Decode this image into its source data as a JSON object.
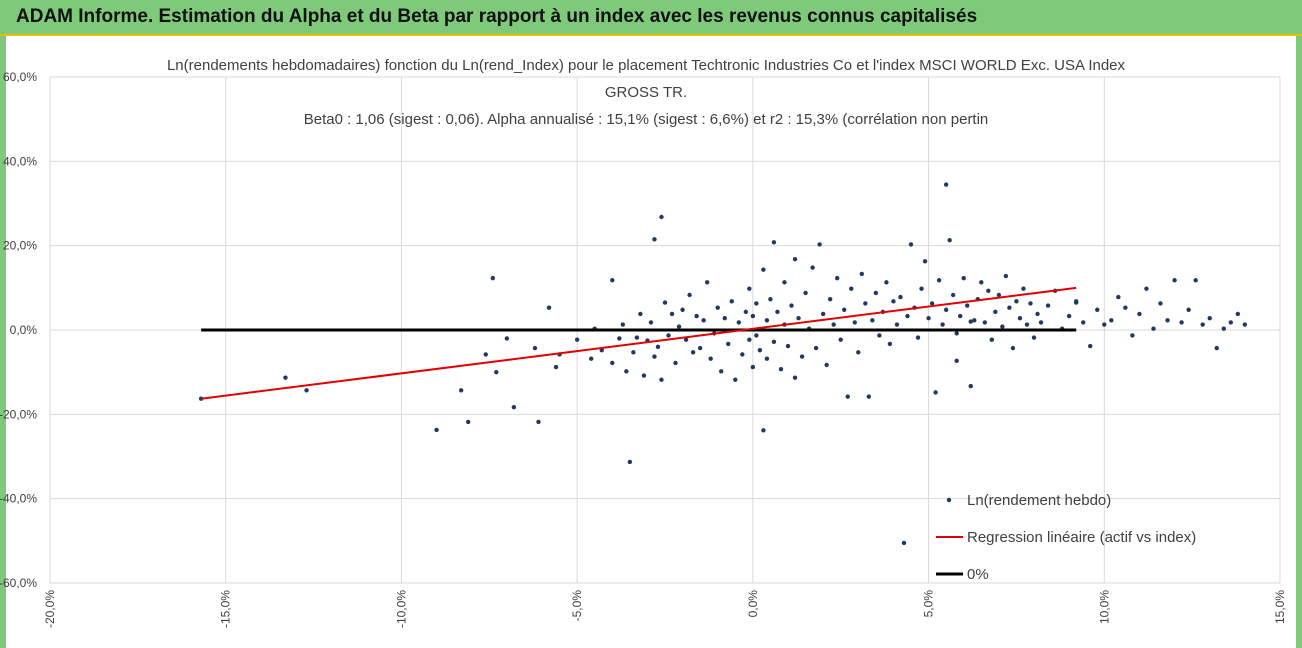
{
  "header": {
    "title": "ADAM Informe. Estimation du Alpha et du Beta par rapport à un index avec les revenus connus capitalisés"
  },
  "colors": {
    "banner": "#7ec97a",
    "banner_border": "#e8c000",
    "points": "#1f3864",
    "regression": "#e00000",
    "zero_line": "#000000",
    "grid": "#d9d9d9"
  },
  "chart_data": {
    "type": "scatter",
    "title_lines": [
      "Ln(rendements hebdomadaires) fonction du Ln(rend_Index) pour le placement Techtronic Industries Co  et l'index MSCI WORLD Exc. USA Index",
      "GROSS TR.",
      "Beta0 : 1,06 (sigest : 0,06). Alpha annualisé : 15,1% (sigest : 6,6%) et r2 : 15,3% (corrélation non pertin"
    ],
    "xlim": [
      -0.2,
      0.15
    ],
    "ylim": [
      -0.6,
      0.6
    ],
    "x_ticks": [
      -0.2,
      -0.15,
      -0.1,
      -0.05,
      0,
      0.05,
      0.1,
      0.15
    ],
    "x_tick_labels": [
      "-20,0%",
      "-15,0%",
      "-10,0%",
      "-5,0%",
      "0,0%",
      "5,0%",
      "10,0%",
      "15,0%"
    ],
    "y_ticks": [
      0.6,
      0.4,
      0.2,
      0,
      -0.2,
      -0.4,
      -0.6
    ],
    "y_tick_labels": [
      "60,0%",
      "40,0%",
      "20,0%",
      "0,0%",
      "-20,0%",
      "-40,0%",
      "-60,0%"
    ],
    "grid": true,
    "legend_position": "bottom-right",
    "series": [
      {
        "name": "Ln(rendement hebdo)",
        "kind": "points",
        "points": [
          [
            -0.157,
            -0.163
          ],
          [
            -0.133,
            -0.113
          ],
          [
            -0.127,
            -0.143
          ],
          [
            -0.09,
            -0.237
          ],
          [
            -0.083,
            -0.143
          ],
          [
            -0.081,
            -0.218
          ],
          [
            -0.076,
            -0.058
          ],
          [
            -0.074,
            0.123
          ],
          [
            -0.073,
            -0.1
          ],
          [
            -0.07,
            -0.02
          ],
          [
            -0.068,
            -0.183
          ],
          [
            -0.062,
            -0.043
          ],
          [
            -0.061,
            -0.218
          ],
          [
            -0.058,
            0.053
          ],
          [
            -0.056,
            -0.088
          ],
          [
            -0.055,
            -0.058
          ],
          [
            -0.05,
            -0.023
          ],
          [
            -0.046,
            -0.068
          ],
          [
            -0.045,
            0.003
          ],
          [
            -0.043,
            -0.048
          ],
          [
            -0.04,
            0.118
          ],
          [
            -0.04,
            -0.078
          ],
          [
            -0.038,
            -0.02
          ],
          [
            -0.037,
            0.013
          ],
          [
            -0.036,
            -0.098
          ],
          [
            -0.035,
            -0.313
          ],
          [
            -0.034,
            -0.053
          ],
          [
            -0.033,
            -0.018
          ],
          [
            -0.032,
            0.038
          ],
          [
            -0.031,
            -0.108
          ],
          [
            -0.03,
            -0.025
          ],
          [
            -0.029,
            0.018
          ],
          [
            -0.028,
            -0.063
          ],
          [
            -0.028,
            0.215
          ],
          [
            -0.027,
            -0.04
          ],
          [
            -0.026,
            0.268
          ],
          [
            -0.026,
            -0.118
          ],
          [
            -0.025,
            0.065
          ],
          [
            -0.024,
            -0.013
          ],
          [
            -0.023,
            0.038
          ],
          [
            -0.022,
            -0.078
          ],
          [
            -0.021,
            0.008
          ],
          [
            -0.02,
            0.048
          ],
          [
            -0.019,
            -0.023
          ],
          [
            -0.018,
            0.083
          ],
          [
            -0.017,
            -0.053
          ],
          [
            -0.016,
            0.033
          ],
          [
            -0.015,
            -0.043
          ],
          [
            -0.014,
            0.023
          ],
          [
            -0.013,
            0.113
          ],
          [
            -0.012,
            -0.068
          ],
          [
            -0.011,
            -0.008
          ],
          [
            -0.01,
            0.053
          ],
          [
            -0.009,
            -0.098
          ],
          [
            -0.008,
            0.028
          ],
          [
            -0.007,
            -0.033
          ],
          [
            -0.006,
            0.068
          ],
          [
            -0.005,
            -0.118
          ],
          [
            -0.004,
            0.018
          ],
          [
            -0.003,
            -0.058
          ],
          [
            -0.002,
            0.043
          ],
          [
            -0.001,
            -0.023
          ],
          [
            -0.001,
            0.098
          ],
          [
            0.0,
            -0.088
          ],
          [
            0.0,
            0.033
          ],
          [
            0.001,
            -0.013
          ],
          [
            0.001,
            0.063
          ],
          [
            0.002,
            -0.048
          ],
          [
            0.003,
            0.143
          ],
          [
            0.003,
            -0.238
          ],
          [
            0.004,
            0.023
          ],
          [
            0.004,
            -0.068
          ],
          [
            0.005,
            0.073
          ],
          [
            0.006,
            -0.028
          ],
          [
            0.006,
            0.208
          ],
          [
            0.007,
            0.043
          ],
          [
            0.008,
            -0.093
          ],
          [
            0.009,
            0.013
          ],
          [
            0.009,
            0.113
          ],
          [
            0.01,
            -0.038
          ],
          [
            0.011,
            0.058
          ],
          [
            0.012,
            -0.113
          ],
          [
            0.012,
            0.168
          ],
          [
            0.013,
            0.028
          ],
          [
            0.014,
            -0.063
          ],
          [
            0.015,
            0.088
          ],
          [
            0.016,
            0.003
          ],
          [
            0.017,
            0.148
          ],
          [
            0.018,
            -0.043
          ],
          [
            0.019,
            0.203
          ],
          [
            0.02,
            0.038
          ],
          [
            0.021,
            -0.083
          ],
          [
            0.022,
            0.073
          ],
          [
            0.023,
            0.013
          ],
          [
            0.024,
            0.123
          ],
          [
            0.025,
            -0.023
          ],
          [
            0.026,
            0.048
          ],
          [
            0.027,
            -0.158
          ],
          [
            0.028,
            0.098
          ],
          [
            0.029,
            0.018
          ],
          [
            0.03,
            -0.053
          ],
          [
            0.031,
            0.133
          ],
          [
            0.032,
            0.063
          ],
          [
            0.033,
            -0.158
          ],
          [
            0.034,
            0.023
          ],
          [
            0.035,
            0.088
          ],
          [
            0.036,
            -0.013
          ],
          [
            0.037,
            0.043
          ],
          [
            0.038,
            0.113
          ],
          [
            0.039,
            -0.033
          ],
          [
            0.04,
            0.068
          ],
          [
            0.041,
            0.013
          ],
          [
            0.042,
            0.078
          ],
          [
            0.043,
            -0.505
          ],
          [
            0.044,
            0.033
          ],
          [
            0.045,
            0.203
          ],
          [
            0.046,
            0.053
          ],
          [
            0.047,
            -0.018
          ],
          [
            0.048,
            0.098
          ],
          [
            0.049,
            0.163
          ],
          [
            0.05,
            0.028
          ],
          [
            0.051,
            0.063
          ],
          [
            0.052,
            -0.148
          ],
          [
            0.053,
            0.118
          ],
          [
            0.054,
            0.013
          ],
          [
            0.055,
            0.048
          ],
          [
            0.056,
            0.213
          ],
          [
            0.057,
            0.083
          ],
          [
            0.058,
            -0.008
          ],
          [
            0.059,
            0.033
          ],
          [
            0.06,
            0.123
          ],
          [
            0.061,
            0.058
          ],
          [
            0.062,
            -0.133
          ],
          [
            0.063,
            0.023
          ],
          [
            0.064,
            0.073
          ],
          [
            0.065,
            0.113
          ],
          [
            0.066,
            0.018
          ],
          [
            0.067,
            0.093
          ],
          [
            0.068,
            -0.023
          ],
          [
            0.069,
            0.043
          ],
          [
            0.07,
            0.083
          ],
          [
            0.071,
            0.008
          ],
          [
            0.072,
            0.128
          ],
          [
            0.073,
            0.053
          ],
          [
            0.074,
            -0.043
          ],
          [
            0.075,
            0.068
          ],
          [
            0.076,
            0.028
          ],
          [
            0.077,
            0.098
          ],
          [
            0.078,
            0.013
          ],
          [
            0.079,
            0.063
          ],
          [
            0.08,
            -0.018
          ],
          [
            0.081,
            0.038
          ],
          [
            0.082,
            0.018
          ],
          [
            0.084,
            0.058
          ],
          [
            0.086,
            0.093
          ],
          [
            0.088,
            0.003
          ],
          [
            0.09,
            0.033
          ],
          [
            0.092,
            0.068
          ],
          [
            0.094,
            0.018
          ],
          [
            0.096,
            -0.038
          ],
          [
            0.098,
            0.048
          ],
          [
            0.1,
            0.013
          ],
          [
            0.102,
            0.023
          ],
          [
            0.104,
            0.078
          ],
          [
            0.106,
            0.053
          ],
          [
            0.108,
            -0.013
          ],
          [
            0.11,
            0.038
          ],
          [
            0.112,
            0.098
          ],
          [
            0.114,
            0.003
          ],
          [
            0.116,
            0.063
          ],
          [
            0.118,
            0.023
          ],
          [
            0.12,
            0.118
          ],
          [
            0.122,
            0.018
          ],
          [
            0.124,
            0.048
          ],
          [
            0.126,
            0.118
          ],
          [
            0.128,
            0.013
          ],
          [
            0.13,
            0.028
          ],
          [
            0.132,
            -0.043
          ],
          [
            0.134,
            0.003
          ],
          [
            0.136,
            0.018
          ],
          [
            0.138,
            0.038
          ],
          [
            0.14,
            0.013
          ],
          [
            0.055,
            0.345
          ],
          [
            0.058,
            -0.073
          ],
          [
            0.062,
            0.02
          ],
          [
            0.092,
            0.065
          ]
        ]
      },
      {
        "name": "Regression linéaire (actif vs index)",
        "kind": "line",
        "points": [
          [
            -0.157,
            -0.163
          ],
          [
            0.092,
            0.1
          ]
        ]
      },
      {
        "name": "0%",
        "kind": "line",
        "points": [
          [
            -0.157,
            0.0
          ],
          [
            0.092,
            0.0
          ]
        ]
      }
    ]
  }
}
